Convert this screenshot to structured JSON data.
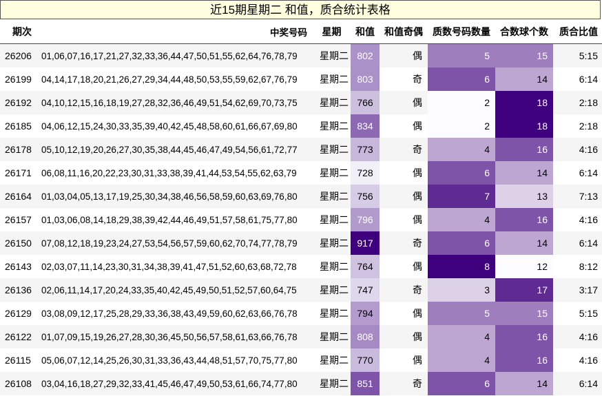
{
  "title": "近15期星期二 和值，质合统计表格",
  "headers": {
    "issue": "期次",
    "numbers": "中奖号码",
    "day": "星期",
    "sum": "和值",
    "sum_oe": "和值奇偶",
    "prime_count": "质数号码数量",
    "composite_count": "合数球个数",
    "ratio": "质合比值"
  },
  "rows": [
    {
      "issue": "26206",
      "numbers": "01,06,07,16,17,21,27,32,33,36,44,47,50,51,55,62,64,76,78,79",
      "day": "星期二",
      "sum": "802",
      "oe": "偶",
      "prime": "5",
      "comp": "15",
      "ratio": "5:15"
    },
    {
      "issue": "26199",
      "numbers": "04,14,17,18,20,21,26,27,29,34,44,48,50,53,55,59,62,67,76,79",
      "day": "星期二",
      "sum": "803",
      "oe": "奇",
      "prime": "6",
      "comp": "14",
      "ratio": "6:14"
    },
    {
      "issue": "26192",
      "numbers": "04,10,12,15,16,18,19,27,28,32,36,46,49,51,54,62,69,70,73,75",
      "day": "星期二",
      "sum": "766",
      "oe": "偶",
      "prime": "2",
      "comp": "18",
      "ratio": "2:18"
    },
    {
      "issue": "26185",
      "numbers": "04,06,12,15,24,30,33,35,39,40,42,45,48,58,60,61,66,67,69,80",
      "day": "星期二",
      "sum": "834",
      "oe": "偶",
      "prime": "2",
      "comp": "18",
      "ratio": "2:18"
    },
    {
      "issue": "26178",
      "numbers": "05,10,12,19,20,26,27,30,35,38,44,45,46,47,49,54,56,61,72,77",
      "day": "星期二",
      "sum": "773",
      "oe": "奇",
      "prime": "4",
      "comp": "16",
      "ratio": "4:16"
    },
    {
      "issue": "26171",
      "numbers": "06,08,11,16,20,22,23,30,31,33,38,39,41,44,53,54,55,62,63,79",
      "day": "星期二",
      "sum": "728",
      "oe": "偶",
      "prime": "6",
      "comp": "14",
      "ratio": "6:14"
    },
    {
      "issue": "26164",
      "numbers": "01,03,04,05,13,17,19,25,30,34,38,46,56,58,59,60,63,69,76,80",
      "day": "星期二",
      "sum": "756",
      "oe": "偶",
      "prime": "7",
      "comp": "13",
      "ratio": "7:13"
    },
    {
      "issue": "26157",
      "numbers": "01,03,06,08,14,18,29,38,39,42,44,46,49,51,57,58,61,75,77,80",
      "day": "星期二",
      "sum": "796",
      "oe": "偶",
      "prime": "4",
      "comp": "16",
      "ratio": "4:16"
    },
    {
      "issue": "26150",
      "numbers": "07,08,12,18,19,23,24,27,53,54,56,57,59,60,62,70,74,77,78,79",
      "day": "星期二",
      "sum": "917",
      "oe": "奇",
      "prime": "6",
      "comp": "14",
      "ratio": "6:14"
    },
    {
      "issue": "26143",
      "numbers": "02,03,07,11,14,23,30,31,34,38,39,41,47,51,52,60,63,68,72,78",
      "day": "星期二",
      "sum": "764",
      "oe": "偶",
      "prime": "8",
      "comp": "12",
      "ratio": "8:12"
    },
    {
      "issue": "26136",
      "numbers": "02,06,11,14,17,20,24,33,35,40,42,45,49,50,51,52,57,60,64,75",
      "day": "星期二",
      "sum": "747",
      "oe": "奇",
      "prime": "3",
      "comp": "17",
      "ratio": "3:17"
    },
    {
      "issue": "26129",
      "numbers": "03,08,09,12,17,25,28,29,33,36,38,43,49,59,60,62,63,66,76,78",
      "day": "星期二",
      "sum": "794",
      "oe": "偶",
      "prime": "5",
      "comp": "15",
      "ratio": "5:15"
    },
    {
      "issue": "26122",
      "numbers": "01,07,09,15,19,26,27,28,30,36,45,50,56,57,58,61,63,66,76,78",
      "day": "星期二",
      "sum": "808",
      "oe": "偶",
      "prime": "4",
      "comp": "16",
      "ratio": "4:16"
    },
    {
      "issue": "26115",
      "numbers": "05,06,07,12,14,25,26,30,31,33,36,43,44,48,51,57,70,75,77,80",
      "day": "星期二",
      "sum": "770",
      "oe": "偶",
      "prime": "4",
      "comp": "16",
      "ratio": "4:16"
    },
    {
      "issue": "26108",
      "numbers": "03,04,16,18,27,29,32,33,41,45,46,47,49,50,53,61,66,74,77,80",
      "day": "星期二",
      "sum": "851",
      "oe": "奇",
      "prime": "6",
      "comp": "14",
      "ratio": "6:14"
    }
  ],
  "colors": {
    "sum_scale": [
      "#f1f0f8",
      "#3f007d"
    ],
    "count_scale": [
      "#fcfbfd",
      "#3f007d"
    ],
    "title_bg": "#ffffe0"
  }
}
